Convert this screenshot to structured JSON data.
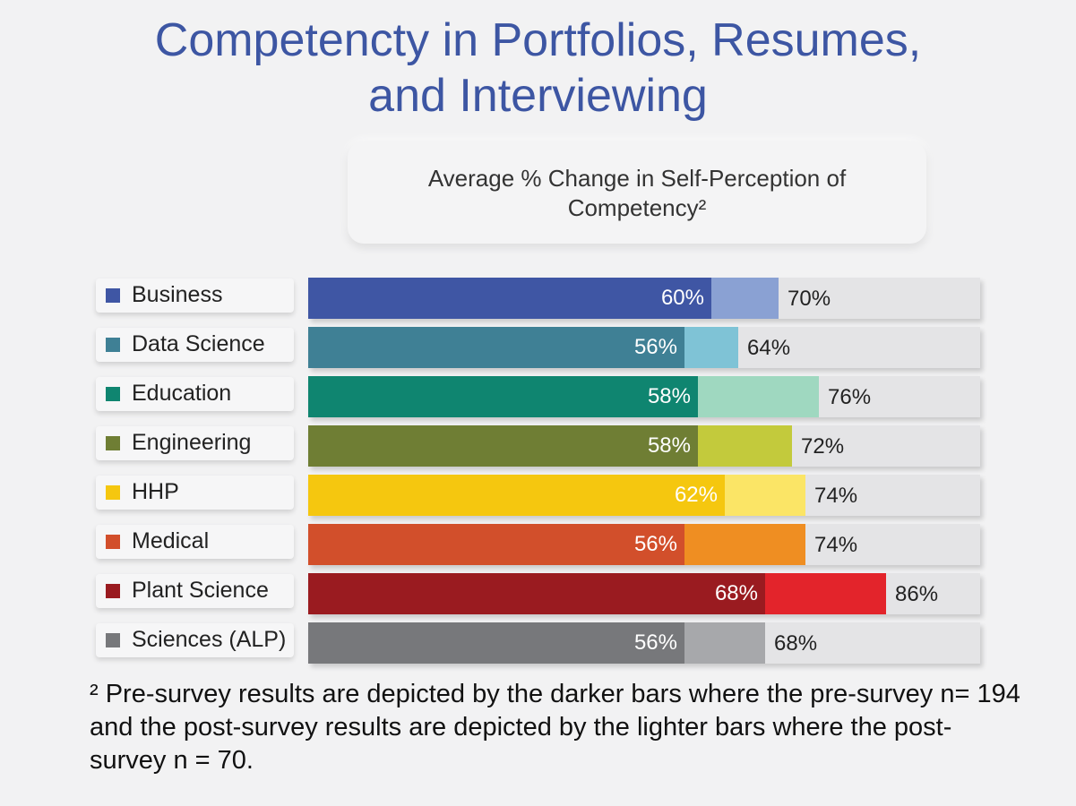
{
  "title_line1": "Competencty in Portfolios, Resumes,",
  "title_line2": "and Interviewing",
  "subtitle": "Average % Change in Self-Perception of Competency²",
  "footnote": "² Pre-survey results are depicted by the darker bars where the pre-survey n= 194 and the post-survey results are depicted by the lighter bars where the post-survey n = 70.",
  "chart_data": {
    "type": "bar",
    "orientation": "horizontal",
    "title": "Competencty in Portfolios, Resumes, and Interviewing",
    "subtitle": "Average % Change in Self-Perception of Competency²",
    "categories": [
      "Business",
      "Data Science",
      "Education",
      "Engineering",
      "HHP",
      "Medical",
      "Plant Science",
      "Sciences (ALP)"
    ],
    "xlim": [
      0,
      100
    ],
    "grid": false,
    "series": [
      {
        "name": "Pre-survey",
        "values": [
          60,
          56,
          58,
          58,
          62,
          56,
          68,
          56
        ],
        "labels": [
          "60%",
          "56%",
          "58%",
          "58%",
          "62%",
          "56%",
          "68%",
          "56%"
        ]
      },
      {
        "name": "Post-survey",
        "values": [
          70,
          64,
          76,
          72,
          74,
          74,
          86,
          68
        ],
        "labels": [
          "70%",
          "64%",
          "76%",
          "72%",
          "74%",
          "74%",
          "86%",
          "68%"
        ]
      }
    ],
    "colors": {
      "dark": [
        "#3f56a4",
        "#3f8095",
        "#0f8570",
        "#6f7e34",
        "#f5c70f",
        "#d24f2b",
        "#9a1b20",
        "#77787b"
      ],
      "light": [
        "#8aa1d3",
        "#7fc3d6",
        "#9fd8c0",
        "#c3ca3c",
        "#fbe566",
        "#ef8e22",
        "#e3242b",
        "#a7a8ab"
      ]
    }
  }
}
